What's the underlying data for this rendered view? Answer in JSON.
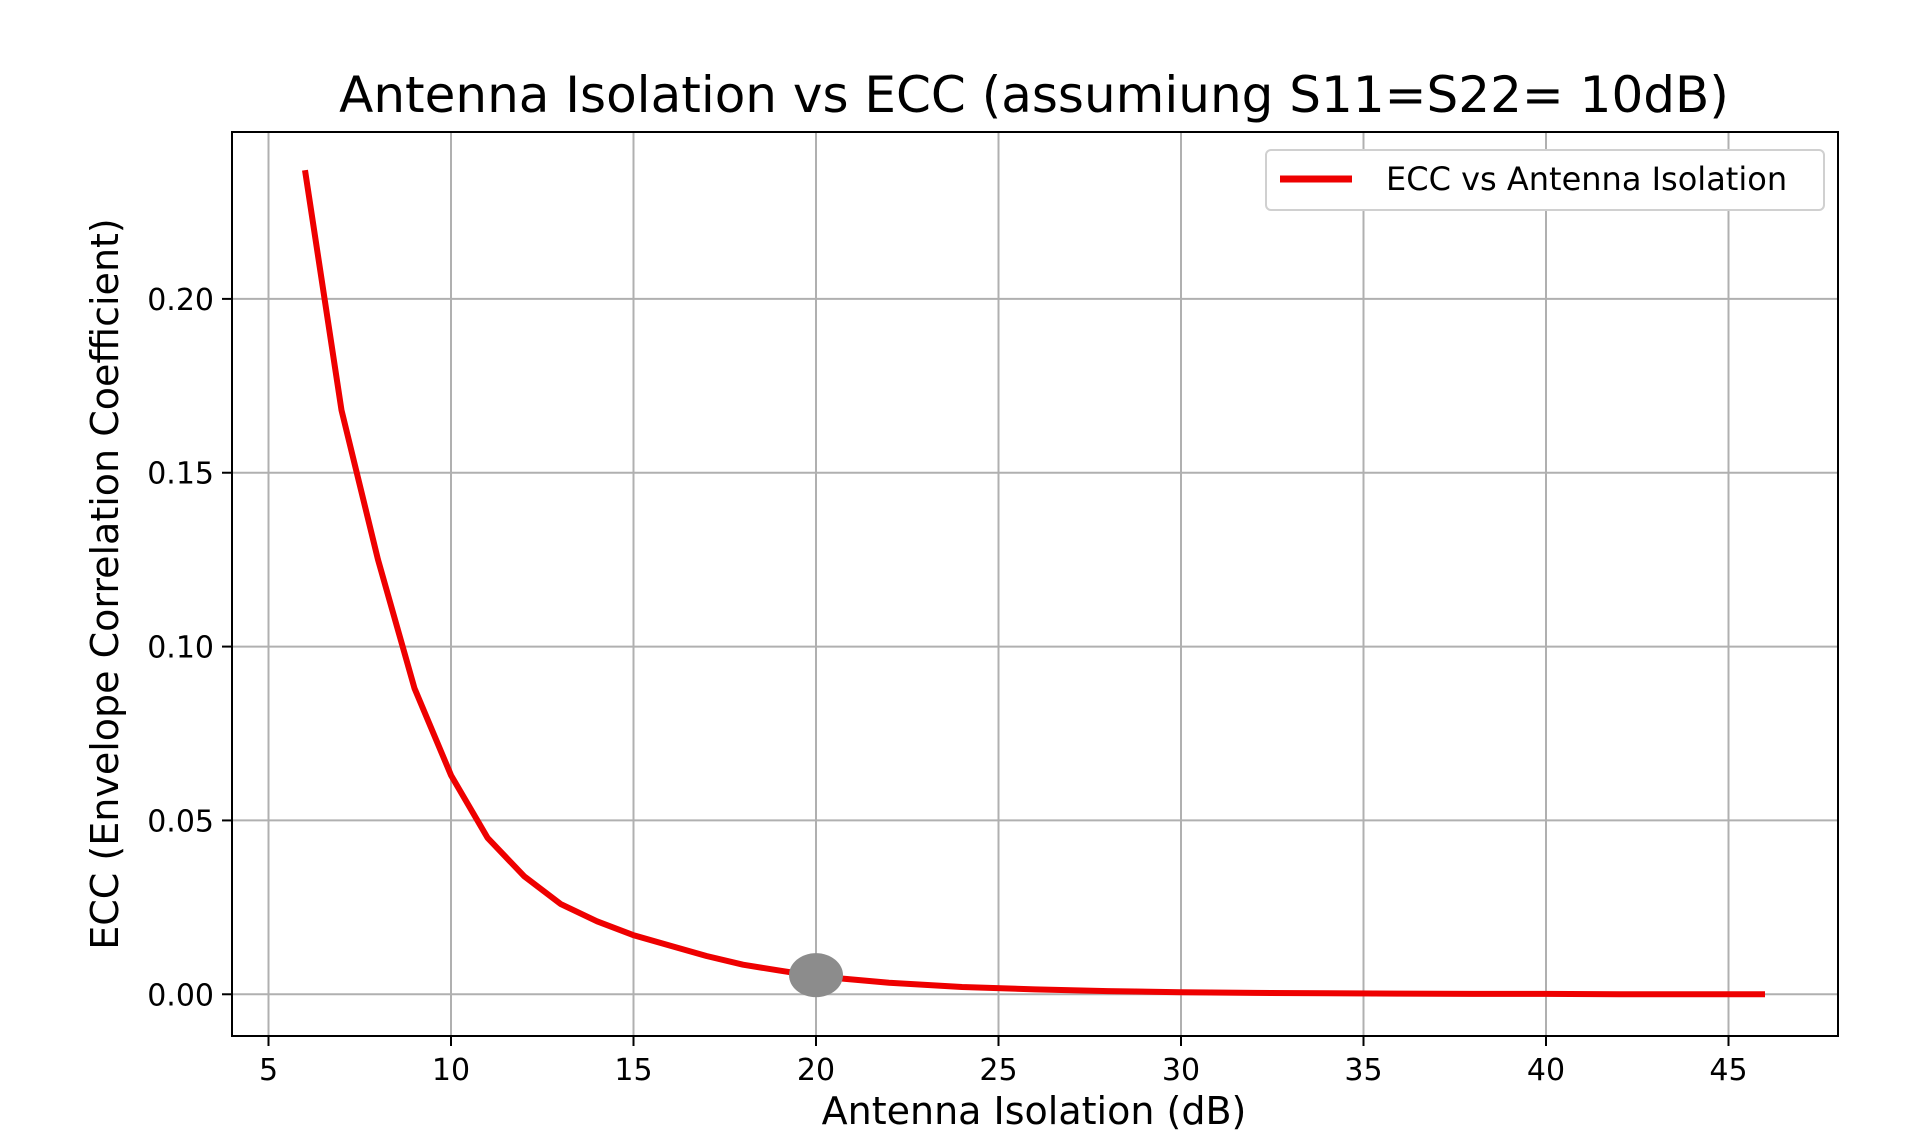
{
  "chart_data": {
    "type": "line",
    "title": "Antenna Isolation vs ECC (assumiung S11=S22= 10dB)",
    "xlabel": "Antenna Isolation (dB)",
    "ylabel": "ECC (Envelope Correlation Coefficient)",
    "xlim": [
      4,
      48
    ],
    "ylim": [
      -0.012,
      0.248
    ],
    "xticks": [
      5,
      10,
      15,
      20,
      25,
      30,
      35,
      40,
      45
    ],
    "yticks": [
      0.0,
      0.05,
      0.1,
      0.15,
      0.2
    ],
    "ytick_labels": [
      "0.00",
      "0.05",
      "0.10",
      "0.15",
      "0.20"
    ],
    "grid": true,
    "legend_position": "top-right",
    "series": [
      {
        "name": "ECC vs Antenna Isolation",
        "color": "#ee0000",
        "x": [
          6,
          7,
          8,
          9,
          10,
          11,
          12,
          13,
          14,
          15,
          16,
          17,
          18,
          19,
          20,
          22,
          24,
          26,
          28,
          30,
          32,
          34,
          36,
          38,
          40,
          42,
          44,
          46
        ],
        "y": [
          0.237,
          0.168,
          0.125,
          0.088,
          0.063,
          0.045,
          0.034,
          0.026,
          0.021,
          0.017,
          0.014,
          0.011,
          0.0085,
          0.0068,
          0.0052,
          0.0033,
          0.0021,
          0.0014,
          0.0009,
          0.0006,
          0.0004,
          0.0003,
          0.0002,
          0.0001,
          0.0001,
          0.0,
          0.0,
          0.0
        ]
      }
    ],
    "marker": {
      "x": 20,
      "y": 0.0055,
      "color": "#8c8c8c"
    }
  }
}
